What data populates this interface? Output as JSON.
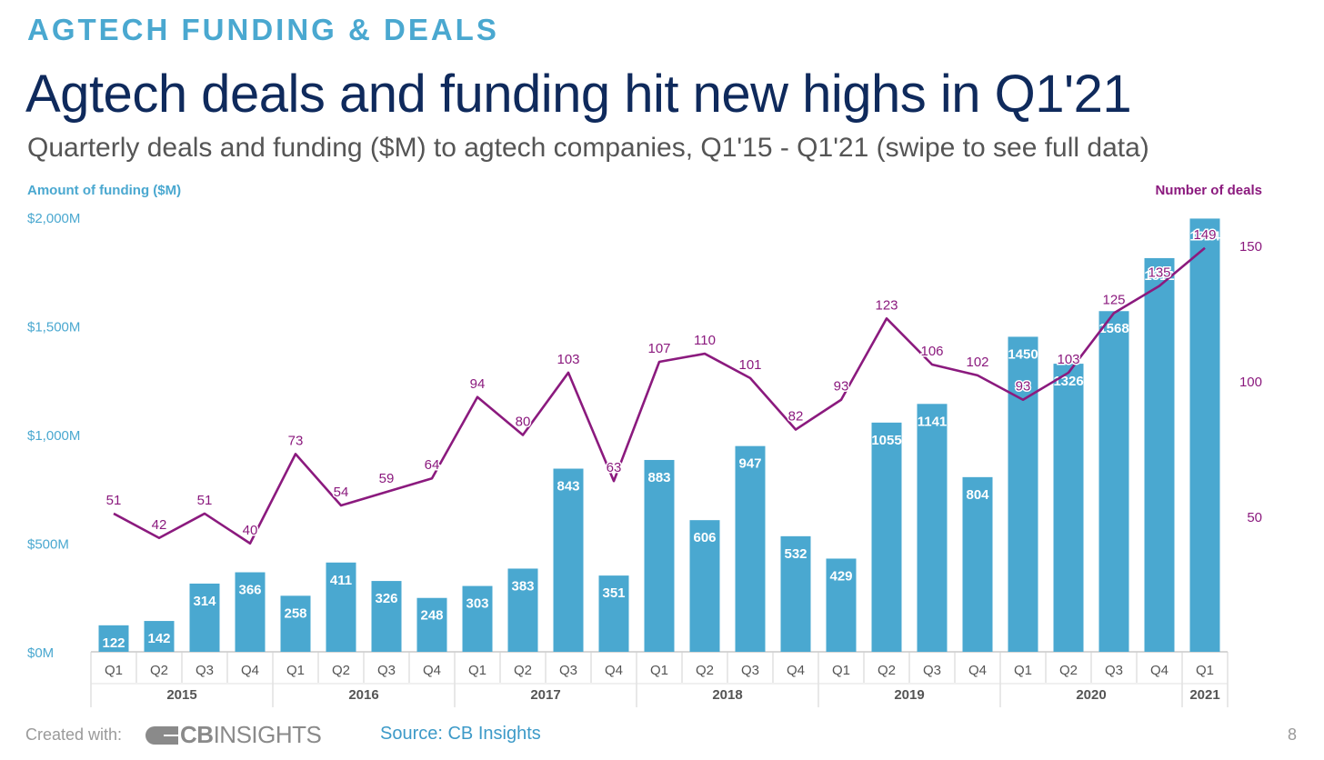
{
  "header": {
    "kicker": "AGTECH FUNDING & DEALS",
    "title": "Agtech deals and funding hit new highs in Q1'21",
    "subtitle": "Quarterly deals and funding ($M) to agtech companies, Q1'15 - Q1'21 (swipe to see full data)"
  },
  "colors": {
    "bar": "#4aa8d0",
    "line": "#8b1a7e",
    "left_axis_text": "#4aa8d0",
    "right_axis_text": "#8b1a7e",
    "title": "#0f2a5c"
  },
  "chart_data": {
    "type": "bar",
    "left_axis_title": "Amount of funding ($M)",
    "right_axis_title": "Number of deals",
    "left_ticks": [
      "$0M",
      "$500M",
      "$1,000M",
      "$1,500M",
      "$2,000M"
    ],
    "left_tick_values": [
      0,
      500,
      1000,
      1500,
      2000
    ],
    "right_ticks": [
      "50",
      "100",
      "150"
    ],
    "right_tick_values": [
      50,
      100,
      150
    ],
    "ylim_left": [
      0,
      2000
    ],
    "ylim_right": [
      0,
      160
    ],
    "categories": [
      "Q1",
      "Q2",
      "Q3",
      "Q4",
      "Q1",
      "Q2",
      "Q3",
      "Q4",
      "Q1",
      "Q2",
      "Q3",
      "Q4",
      "Q1",
      "Q2",
      "Q3",
      "Q4",
      "Q1",
      "Q2",
      "Q3",
      "Q4",
      "Q1",
      "Q2",
      "Q3",
      "Q4",
      "Q1"
    ],
    "years": [
      {
        "label": "2015",
        "count": 4
      },
      {
        "label": "2016",
        "count": 4
      },
      {
        "label": "2017",
        "count": 4
      },
      {
        "label": "2018",
        "count": 4
      },
      {
        "label": "2019",
        "count": 4
      },
      {
        "label": "2020",
        "count": 4
      },
      {
        "label": "2021",
        "count": 1
      }
    ],
    "series": [
      {
        "name": "Amount of funding ($M)",
        "type": "bar",
        "values": [
          122,
          142,
          314,
          366,
          258,
          411,
          326,
          248,
          303,
          383,
          843,
          351,
          883,
          606,
          947,
          532,
          429,
          1055,
          1141,
          804,
          1450,
          1326,
          1568,
          1812,
          1994
        ]
      },
      {
        "name": "Number of deals",
        "type": "line",
        "values": [
          51,
          42,
          51,
          40,
          73,
          54,
          59,
          64,
          94,
          80,
          103,
          63,
          107,
          110,
          101,
          82,
          93,
          123,
          106,
          102,
          93,
          103,
          125,
          135,
          149
        ]
      }
    ]
  },
  "footer": {
    "created_with": "Created with:",
    "logo_bold": "CB",
    "logo_rest": "INSIGHTS",
    "source": "Source: CB Insights",
    "page_number": "8"
  }
}
